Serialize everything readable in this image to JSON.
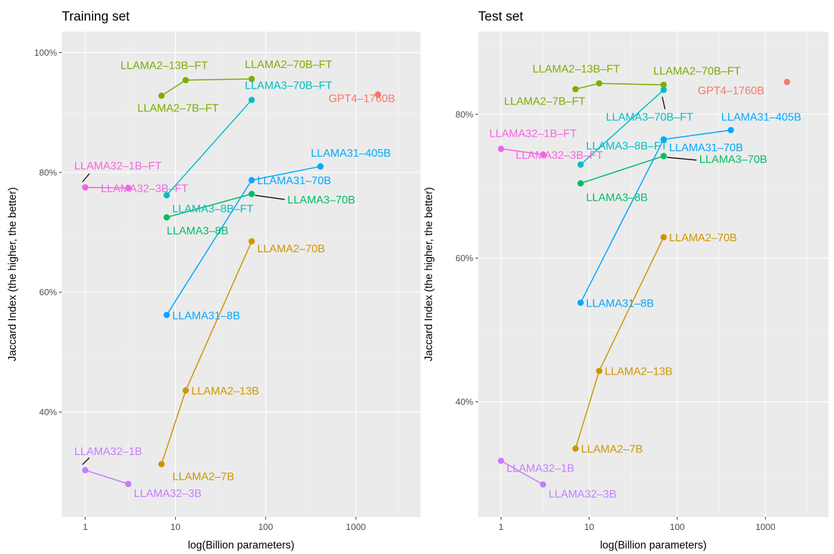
{
  "chart_data": [
    {
      "type": "scatter",
      "title": "Training set",
      "xlabel": "log(Billion parameters)",
      "ylabel": "Jaccard Index (the higher, the better)",
      "x_scale": "log10",
      "xlim": [
        0.55,
        5200
      ],
      "ylim": [
        0.225,
        1.035
      ],
      "x_ticks": [
        1,
        10,
        100,
        1000
      ],
      "x_tick_labels": [
        "1",
        "10",
        "100",
        "1000"
      ],
      "y_ticks": [
        0.4,
        0.6,
        0.8,
        1.0
      ],
      "y_tick_labels": [
        "40%",
        "60%",
        "80%",
        "100%"
      ],
      "grid": true,
      "legend": "none",
      "series": [
        {
          "color": "#F8766D",
          "points": [
            {
              "label": "GPT4–1760B",
              "x": 1760,
              "y": 0.93
            }
          ]
        },
        {
          "color": "#7CAE00",
          "points": [
            {
              "label": "LLAMA2–7B–FT",
              "x": 7,
              "y": 0.928
            },
            {
              "label": "LLAMA2–13B–FT",
              "x": 13,
              "y": 0.954
            },
            {
              "label": "LLAMA2–70B–FT",
              "x": 70,
              "y": 0.956
            }
          ]
        },
        {
          "color": "#00BFC4",
          "points": [
            {
              "label": "LLAMA3–8B–FT",
              "x": 8,
              "y": 0.762
            },
            {
              "label": "LLAMA3–70B–FT",
              "x": 70,
              "y": 0.921
            }
          ]
        },
        {
          "color": "#F564E3",
          "points": [
            {
              "label": "LLAMA32–1B–FT",
              "x": 1,
              "y": 0.775
            },
            {
              "label": "LLAMA32–3B–FT",
              "x": 3,
              "y": 0.774
            }
          ]
        },
        {
          "color": "#00A9FF",
          "points": [
            {
              "label": "LLAMA31–8B",
              "x": 8,
              "y": 0.562
            },
            {
              "label": "LLAMA31–70B",
              "x": 70,
              "y": 0.787
            },
            {
              "label": "LLAMA31–405B",
              "x": 405,
              "y": 0.81
            }
          ]
        },
        {
          "color": "#00BE67",
          "points": [
            {
              "label": "LLAMA3–8B",
              "x": 8,
              "y": 0.725
            },
            {
              "label": "LLAMA3–70B",
              "x": 70,
              "y": 0.764
            }
          ]
        },
        {
          "color": "#CD9600",
          "points": [
            {
              "label": "LLAMA2–7B",
              "x": 7,
              "y": 0.313
            },
            {
              "label": "LLAMA2–13B",
              "x": 13,
              "y": 0.436
            },
            {
              "label": "LLAMA2–70B",
              "x": 70,
              "y": 0.685
            }
          ]
        },
        {
          "color": "#C77CFF",
          "points": [
            {
              "label": "LLAMA32–1B",
              "x": 1,
              "y": 0.303
            },
            {
              "label": "LLAMA32–3B",
              "x": 3,
              "y": 0.28
            }
          ]
        }
      ]
    },
    {
      "type": "scatter",
      "title": "Test set",
      "xlabel": "log(Billion parameters)",
      "ylabel": "Jaccard Index (the higher, the better)",
      "x_scale": "log10",
      "xlim": [
        0.55,
        5200
      ],
      "ylim": [
        0.24,
        0.915
      ],
      "x_ticks": [
        1,
        10,
        100,
        1000
      ],
      "x_tick_labels": [
        "1",
        "10",
        "100",
        "1000"
      ],
      "y_ticks": [
        0.4,
        0.6,
        0.8
      ],
      "y_tick_labels": [
        "40%",
        "60%",
        "80%"
      ],
      "grid": true,
      "legend": "none",
      "series": [
        {
          "color": "#F8766D",
          "points": [
            {
              "label": "GPT4–1760B",
              "x": 1760,
              "y": 0.845
            }
          ]
        },
        {
          "color": "#7CAE00",
          "points": [
            {
              "label": "LLAMA2–7B–FT",
              "x": 7,
              "y": 0.835
            },
            {
              "label": "LLAMA2–13B–FT",
              "x": 13,
              "y": 0.843
            },
            {
              "label": "LLAMA2–70B–FT",
              "x": 70,
              "y": 0.841
            }
          ]
        },
        {
          "color": "#00BFC4",
          "points": [
            {
              "label": "LLAMA3–8B–FT",
              "x": 8,
              "y": 0.73
            },
            {
              "label": "LLAMA3–70B–FT",
              "x": 70,
              "y": 0.834
            }
          ]
        },
        {
          "color": "#F564E3",
          "points": [
            {
              "label": "LLAMA32–1B–FT",
              "x": 1,
              "y": 0.752
            },
            {
              "label": "LLAMA32–3B–FT",
              "x": 3,
              "y": 0.744
            }
          ]
        },
        {
          "color": "#00A9FF",
          "points": [
            {
              "label": "LLAMA31–8B",
              "x": 8,
              "y": 0.538
            },
            {
              "label": "LLAMA31–70B",
              "x": 70,
              "y": 0.765
            },
            {
              "label": "LLAMA31–405B",
              "x": 405,
              "y": 0.778
            }
          ]
        },
        {
          "color": "#00BE67",
          "points": [
            {
              "label": "LLAMA3–8B",
              "x": 8,
              "y": 0.704
            },
            {
              "label": "LLAMA3–70B",
              "x": 70,
              "y": 0.742
            }
          ]
        },
        {
          "color": "#CD9600",
          "points": [
            {
              "label": "LLAMA2–7B",
              "x": 7,
              "y": 0.335
            },
            {
              "label": "LLAMA2–13B",
              "x": 13,
              "y": 0.443
            },
            {
              "label": "LLAMA2–70B",
              "x": 70,
              "y": 0.629
            }
          ]
        },
        {
          "color": "#C77CFF",
          "points": [
            {
              "label": "LLAMA32–1B",
              "x": 1,
              "y": 0.318
            },
            {
              "label": "LLAMA32–3B",
              "x": 3,
              "y": 0.285
            }
          ]
        }
      ]
    }
  ]
}
